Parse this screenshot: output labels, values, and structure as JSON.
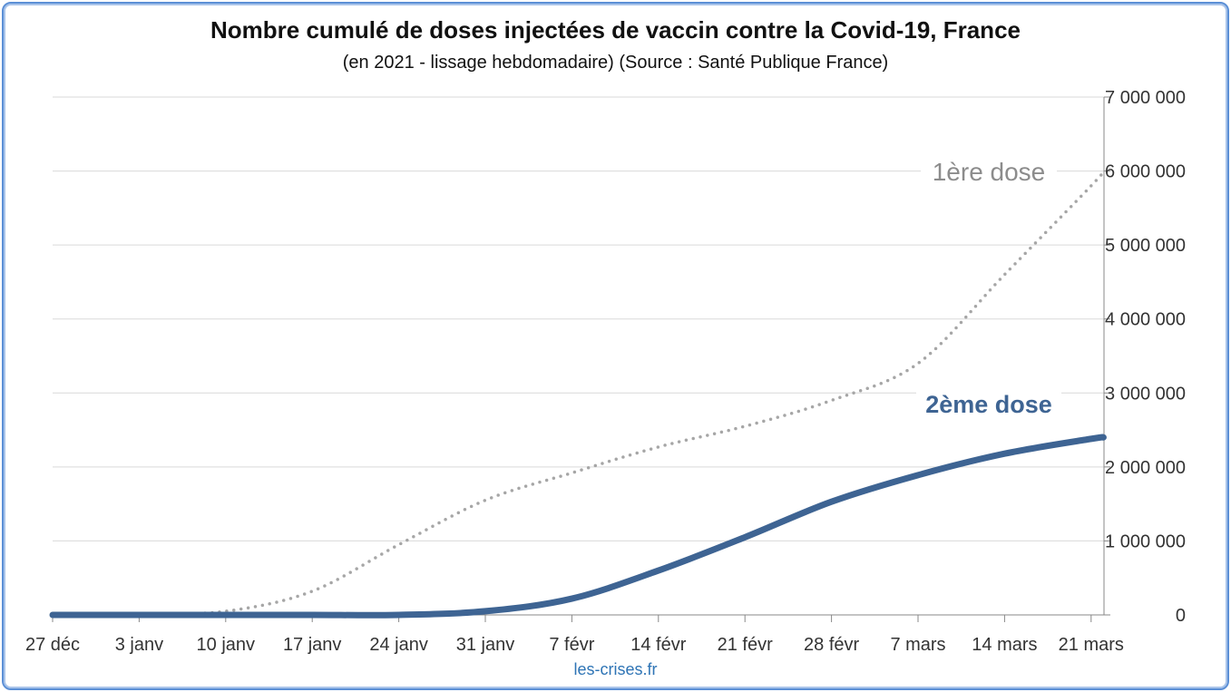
{
  "chart_data": {
    "type": "line",
    "title": "Nombre cumulé de doses injectées de vaccin contre la Covid-19, France",
    "subtitle": "(en 2021 - lissage hebdomadaire) (Source : Santé Publique France)",
    "xlabel": "",
    "ylabel": "",
    "x_ticks": [
      "27 déc",
      "3 janv",
      "10 janv",
      "17 janv",
      "24 janv",
      "31 janv",
      "7 févr",
      "14 févr",
      "21 févr",
      "28 févr",
      "7 mars",
      "14 mars",
      "21 mars"
    ],
    "y_ticks": [
      "0",
      "1 000 000",
      "2 000 000",
      "3 000 000",
      "4 000 000",
      "5 000 000",
      "6 000 000",
      "7 000 000"
    ],
    "ylim": [
      0,
      7000000
    ],
    "y_axis_side": "right",
    "grid": true,
    "x_days": [
      0,
      7,
      14,
      21,
      28,
      35,
      42,
      49,
      56,
      63,
      70,
      77,
      84,
      85
    ],
    "series": [
      {
        "name": "1ère dose",
        "color": "#a6a6a6",
        "style": "dotted",
        "values": [
          0,
          10000,
          50000,
          320000,
          950000,
          1550000,
          1920000,
          2270000,
          2550000,
          2900000,
          3400000,
          4600000,
          5800000,
          6000000
        ]
      },
      {
        "name": "2ème dose",
        "color": "#3e6493",
        "style": "solid",
        "values": [
          0,
          0,
          0,
          0,
          0,
          50000,
          220000,
          600000,
          1050000,
          1530000,
          1890000,
          2180000,
          2380000,
          2400000
        ]
      }
    ],
    "annotations": [
      "1ère dose",
      "2ème dose"
    ]
  },
  "credit": "les-crises.fr"
}
